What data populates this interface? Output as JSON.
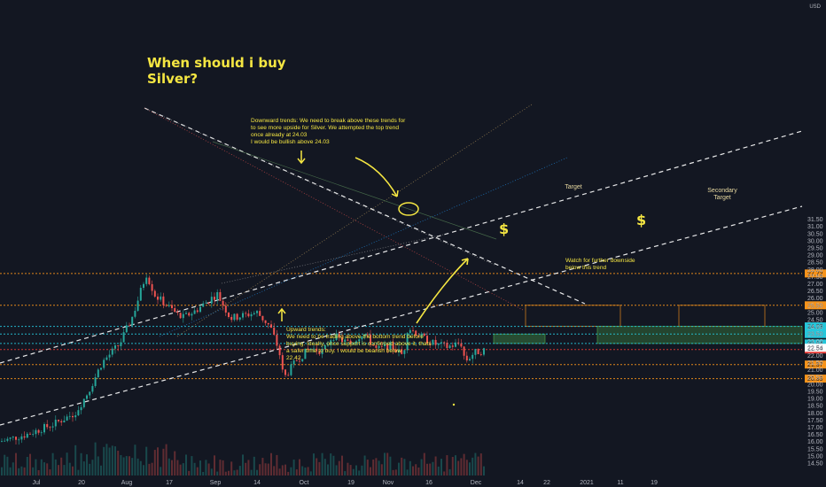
{
  "chart_data": {
    "type": "candlestick",
    "title": "When should i buy Silver?",
    "currency": "USD",
    "y_ticks": [
      14.5,
      15.0,
      15.5,
      16.0,
      16.5,
      17.0,
      17.5,
      18.0,
      18.5,
      19.0,
      19.5,
      20.0,
      20.5,
      21.0,
      21.5,
      22.0,
      22.5,
      23.0,
      23.5,
      24.0,
      24.5,
      25.0,
      25.5,
      26.0,
      26.5,
      27.0,
      27.5,
      28.0,
      28.5,
      29.0,
      29.5,
      30.0,
      30.5,
      31.0,
      31.5
    ],
    "y_tick_labels": [
      "14.50",
      "15.00",
      "15.50",
      "16.00",
      "16.50",
      "17.00",
      "17.50",
      "18.00",
      "18.50",
      "19.00",
      "19.50",
      "20.00",
      "20.50",
      "21.00",
      "21.50",
      "22.00",
      "22.50",
      "23.00",
      "23.50",
      "24.00",
      "24.50",
      "25.00",
      "25.50",
      "26.00",
      "26.50",
      "27.00",
      "27.50",
      "28.00",
      "28.50",
      "29.00",
      "29.50",
      "30.00",
      "30.50",
      "31.00",
      "31.50"
    ],
    "x_ticks": [
      "Jul",
      "20",
      "Aug",
      "17",
      "Sep",
      "14",
      "Oct",
      "19",
      "Nov",
      "16",
      "Dec",
      "14",
      "22",
      "2021",
      "11",
      "19"
    ],
    "y_range": [
      14.2,
      32.2
    ],
    "levels": [
      {
        "value": 27.72,
        "label": "27.72",
        "color": "#f7931a"
      },
      {
        "value": 25.5,
        "label": "25.50",
        "color": "#f7931a"
      },
      {
        "value": 24.03,
        "label": "24.03",
        "color": "#26c6da"
      },
      {
        "value": 23.5,
        "label": "23.50",
        "color": "#26c6da"
      },
      {
        "value": 22.84,
        "label": "22.84",
        "color": "#26c6da"
      },
      {
        "value": 22.42,
        "label": "22.42",
        "color": "#e53935"
      },
      {
        "value": 21.37,
        "label": "21.37",
        "color": "#f7931a"
      },
      {
        "value": 20.39,
        "label": "20.39",
        "color": "#f7931a"
      }
    ],
    "last_price": {
      "value": 22.54,
      "label": "22.54"
    },
    "price_path": [
      [
        0,
        16.0
      ],
      [
        30,
        16.5
      ],
      [
        60,
        17.2
      ],
      [
        85,
        18.0
      ],
      [
        100,
        19.5
      ],
      [
        115,
        21.5
      ],
      [
        135,
        22.8
      ],
      [
        150,
        24.8
      ],
      [
        165,
        27.7
      ],
      [
        175,
        26.2
      ],
      [
        190,
        25.4
      ],
      [
        205,
        24.6
      ],
      [
        220,
        25.1
      ],
      [
        245,
        26.3
      ],
      [
        260,
        24.6
      ],
      [
        290,
        25.0
      ],
      [
        305,
        24.0
      ],
      [
        315,
        22.3
      ],
      [
        320,
        20.4
      ],
      [
        335,
        21.7
      ],
      [
        350,
        22.5
      ],
      [
        365,
        22.3
      ],
      [
        375,
        23.4
      ],
      [
        395,
        22.8
      ],
      [
        410,
        23.6
      ],
      [
        425,
        22.4
      ],
      [
        440,
        22.7
      ],
      [
        455,
        22.0
      ],
      [
        460,
        24.0
      ],
      [
        475,
        23.3
      ],
      [
        490,
        22.8
      ],
      [
        505,
        22.6
      ],
      [
        520,
        22.9
      ],
      [
        525,
        21.6
      ],
      [
        535,
        22.2
      ],
      [
        548,
        22.4
      ]
    ],
    "annotations": {
      "downtrend_note": "Downward trends: We need to break above these trends for to see more upside for Silver. We attempted the top trend once already at 24.03\nI would be bullish above 24.03",
      "uptrend_note": "Upward trends:\nWe need to be trading above the bottom trend before buying. Ideally, once support is confirmed above it, thats a safer time to buy. I would be bearish  below\n22.42",
      "downside_note": "Watch for further downside\nbelow this trend",
      "target_label": "Target",
      "secondary_target_label": "Secondary\nTarget",
      "dollar_symbol": "$"
    }
  }
}
